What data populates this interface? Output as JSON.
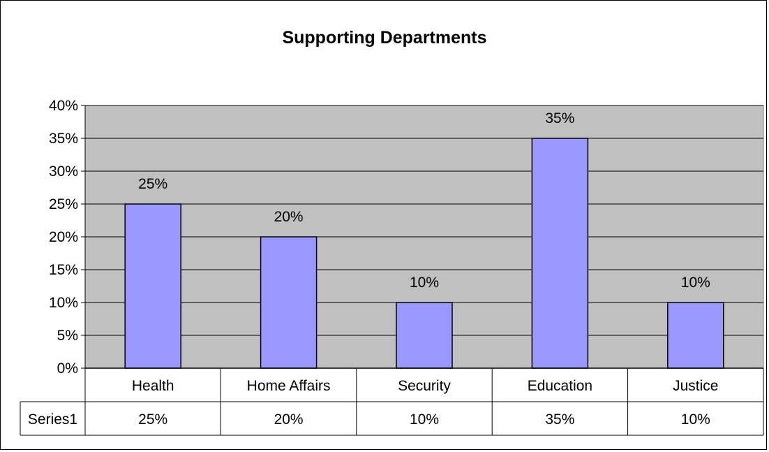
{
  "chart_data": {
    "type": "bar",
    "title": "Supporting Departments",
    "categories": [
      "Health",
      "Home Affairs",
      "Security",
      "Education",
      "Justice"
    ],
    "series": [
      {
        "name": "Series1",
        "values": [
          25,
          20,
          10,
          35,
          10
        ]
      }
    ],
    "data_labels": [
      "25%",
      "20%",
      "10%",
      "35%",
      "10%"
    ],
    "y_ticks": [
      "0%",
      "5%",
      "10%",
      "15%",
      "20%",
      "25%",
      "30%",
      "35%",
      "40%"
    ],
    "ylim": [
      0,
      40
    ],
    "y_unit": "%",
    "grid": true,
    "legend": "data table below chart",
    "data_table": {
      "series_label": "Series1",
      "values": [
        "25%",
        "20%",
        "10%",
        "35%",
        "10%"
      ]
    },
    "colors": {
      "bar_fill": "#9999ff",
      "bar_stroke": "#000000",
      "plot_background": "#c0c0c0",
      "gridline": "#000000"
    }
  }
}
